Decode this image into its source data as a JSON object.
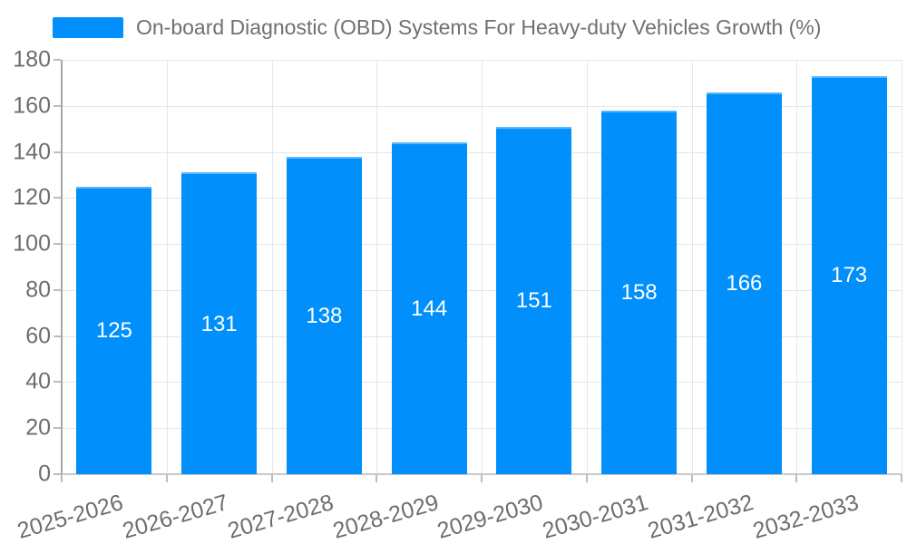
{
  "chart_data": {
    "type": "bar",
    "title": "On-board Diagnostic (OBD) Systems For Heavy-duty Vehicles Growth (%)",
    "series": [
      {
        "name": "On-board Diagnostic (OBD) Systems For Heavy-duty Vehicles Growth (%)",
        "values": [
          125,
          131,
          138,
          144,
          151,
          158,
          166,
          173
        ]
      }
    ],
    "categories": [
      "2025-2026",
      "2026-2027",
      "2027-2028",
      "2028-2029",
      "2029-2030",
      "2030-2031",
      "2031-2032",
      "2032-2033"
    ],
    "value_labels": [
      "125",
      "131",
      "138",
      "144",
      "151",
      "158",
      "166",
      "173"
    ],
    "xlabel": "",
    "ylabel": "",
    "ylim": [
      0,
      180
    ],
    "ytick_step": 20,
    "ytick_labels": [
      "0",
      "20",
      "40",
      "60",
      "80",
      "100",
      "120",
      "140",
      "160",
      "180"
    ],
    "grid": true,
    "legend_position": "top"
  },
  "legend": {
    "label": "On-board Diagnostic (OBD) Systems For Heavy-duty Vehicles Growth (%)"
  },
  "colors": {
    "bar": "#008FFB",
    "axis_label": "#6b6e71",
    "legend_text": "#6e7073",
    "grid_line": "#e5e5e5",
    "y_axis_line": "#a6a6a6",
    "x_axis_line": "#c9c9c9",
    "tick": "#bdbdbd",
    "value_label": "#ffffff",
    "background": "#ffffff"
  }
}
